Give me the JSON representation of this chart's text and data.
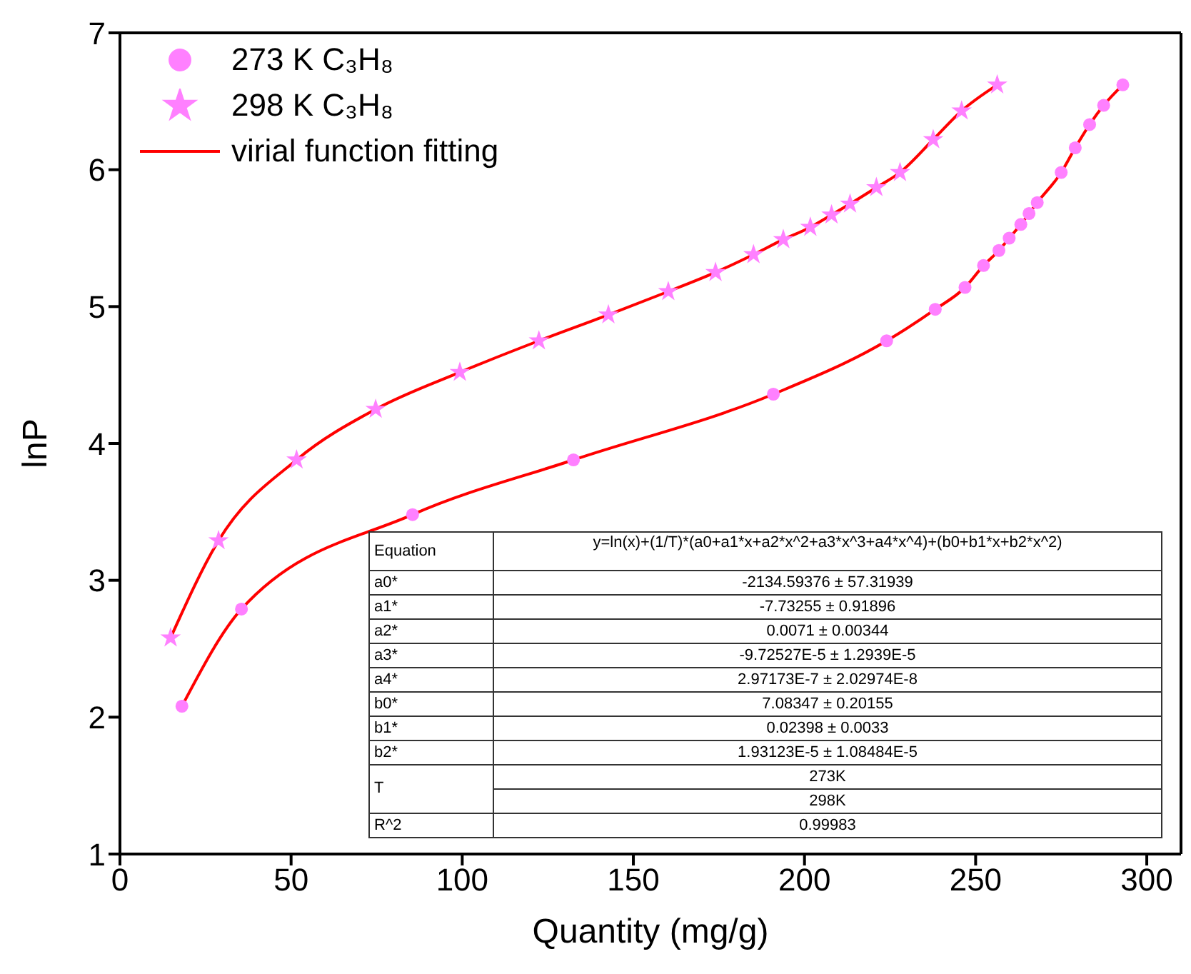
{
  "chart_data": {
    "type": "scatter",
    "xlabel": "Quantity (mg/g)",
    "ylabel": "lnP",
    "xlim": [
      0,
      310
    ],
    "xticks": [
      0,
      50,
      100,
      150,
      200,
      250,
      300
    ],
    "ylim": [
      1,
      7
    ],
    "yticks": [
      1,
      2,
      3,
      4,
      5,
      6,
      7
    ],
    "grid": false,
    "legend": "top left",
    "series": [
      {
        "name": "273 K C₃H₈",
        "marker": "circle",
        "color": "#ff80ff",
        "x": [
          18.1,
          35.5,
          85.5,
          132.5,
          190.9,
          224,
          238.2,
          246.9,
          252.3,
          256.8,
          259.8,
          263.2,
          265.6,
          268,
          275,
          279.1,
          283.3,
          287.4,
          293
        ],
        "values": [
          2.08,
          2.79,
          3.48,
          3.88,
          4.36,
          4.75,
          4.98,
          5.14,
          5.3,
          5.41,
          5.5,
          5.6,
          5.68,
          5.76,
          5.98,
          6.16,
          6.33,
          6.47,
          6.62
        ]
      },
      {
        "name": "298 K C₃H₈",
        "marker": "star",
        "color": "#ff80ff",
        "x": [
          14.8,
          28.8,
          51.6,
          74.7,
          99.3,
          122.4,
          142.7,
          160.2,
          174,
          185.1,
          193.8,
          201.7,
          207.9,
          213.3,
          221,
          227.9,
          237.6,
          245.9,
          256.3
        ],
        "values": [
          2.58,
          3.29,
          3.88,
          4.25,
          4.52,
          4.75,
          4.94,
          5.11,
          5.25,
          5.38,
          5.49,
          5.58,
          5.67,
          5.75,
          5.87,
          5.98,
          6.22,
          6.43,
          6.62
        ]
      },
      {
        "name": "virial function fitting",
        "type": "line",
        "marker": "none",
        "line_style": "solid",
        "color": "#ff0000",
        "x": [
          18.1,
          35.5,
          85.5,
          132.5,
          190.9,
          224,
          238.2,
          246.9,
          252.3,
          256.8,
          259.8,
          263.2,
          265.6,
          268,
          275,
          279.1,
          283.3,
          287.4,
          293
        ],
        "values": [
          2.08,
          2.79,
          3.48,
          3.88,
          4.36,
          4.75,
          4.98,
          5.14,
          5.3,
          5.41,
          5.5,
          5.6,
          5.68,
          5.76,
          5.98,
          6.16,
          6.33,
          6.47,
          6.62
        ]
      },
      {
        "type": "line",
        "marker": "none",
        "line_style": "solid",
        "color": "#ff0000",
        "x": [
          14.8,
          28.8,
          51.6,
          74.7,
          99.3,
          122.4,
          142.7,
          160.2,
          174,
          185.1,
          193.8,
          201.7,
          207.9,
          213.3,
          221,
          227.9,
          237.6,
          245.9,
          256.3
        ],
        "values": [
          2.58,
          3.29,
          3.88,
          4.25,
          4.52,
          4.75,
          4.94,
          5.11,
          5.25,
          5.38,
          5.49,
          5.58,
          5.67,
          5.75,
          5.87,
          5.98,
          6.22,
          6.43,
          6.62
        ]
      }
    ],
    "annotations": [
      "Equation",
      "y=ln(x)+(1/T)*(a0+a1*x+a2*x^2+a3*x^3+a4*x^4)+(b0+b1*x+b2*x^2)",
      "a0*",
      "-2134.59376 ± 57.31939",
      "a1*",
      "-7.73255 ± 0.91896",
      "a2*",
      "0.0071 ± 0.00344",
      "a3*",
      "-9.72527E-5 ± 1.2939E-5",
      "a4*",
      "2.97173E-7 ± 2.02974E-8",
      "b0*",
      "7.08347 ± 0.20155",
      "b1*",
      "0.02398 ± 0.0033",
      "b2*",
      "1.93123E-5 ± 1.08484E-5",
      "T",
      "273K",
      "298K",
      "R^2",
      "0.99983"
    ]
  }
}
